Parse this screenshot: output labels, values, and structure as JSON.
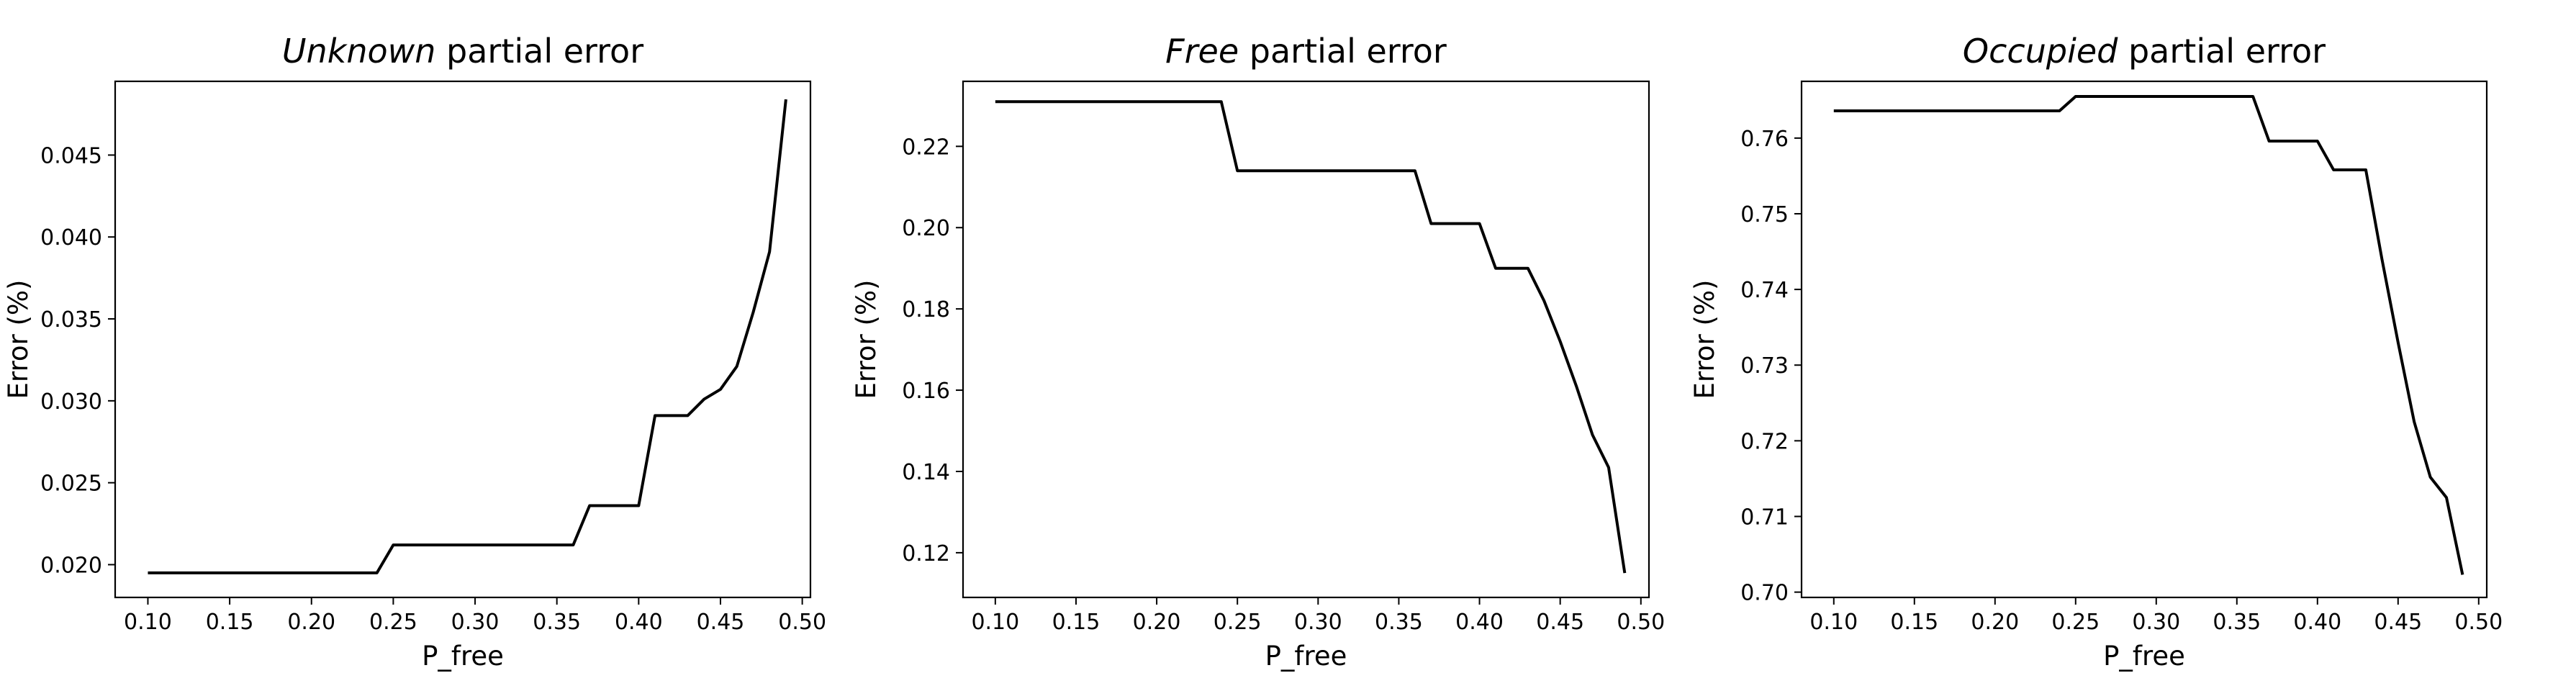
{
  "chart_data": [
    {
      "type": "line",
      "title_em": "Unknown",
      "title_rest": " partial error",
      "xlabel": "P_free",
      "ylabel": "Error (%)",
      "xlim": [
        0.08,
        0.505
      ],
      "ylim": [
        0.018,
        0.0495
      ],
      "xticks": [
        0.1,
        0.15,
        0.2,
        0.25,
        0.3,
        0.35,
        0.4,
        0.45,
        0.5
      ],
      "xtick_labels": [
        "0.10",
        "0.15",
        "0.20",
        "0.25",
        "0.30",
        "0.35",
        "0.40",
        "0.45",
        "0.50"
      ],
      "yticks": [
        0.02,
        0.025,
        0.03,
        0.035,
        0.04,
        0.045
      ],
      "ytick_labels": [
        "0.020",
        "0.025",
        "0.030",
        "0.035",
        "0.040",
        "0.045"
      ],
      "grid": false,
      "series": [
        {
          "color": "#000000",
          "x": [
            0.1,
            0.11,
            0.12,
            0.13,
            0.14,
            0.15,
            0.16,
            0.17,
            0.18,
            0.19,
            0.2,
            0.21,
            0.22,
            0.23,
            0.24,
            0.25,
            0.26,
            0.27,
            0.28,
            0.29,
            0.3,
            0.31,
            0.32,
            0.33,
            0.34,
            0.35,
            0.36,
            0.37,
            0.38,
            0.39,
            0.4,
            0.41,
            0.42,
            0.43,
            0.44,
            0.45,
            0.46,
            0.47,
            0.48,
            0.49
          ],
          "y": [
            0.0195,
            0.0195,
            0.0195,
            0.0195,
            0.0195,
            0.0195,
            0.0195,
            0.0195,
            0.0195,
            0.0195,
            0.0195,
            0.0195,
            0.0195,
            0.0195,
            0.0195,
            0.0212,
            0.0212,
            0.0212,
            0.0212,
            0.0212,
            0.0212,
            0.0212,
            0.0212,
            0.0212,
            0.0212,
            0.0212,
            0.0212,
            0.0236,
            0.0236,
            0.0236,
            0.0236,
            0.0291,
            0.0291,
            0.0291,
            0.0301,
            0.0307,
            0.0321,
            0.0354,
            0.0391,
            0.0484
          ]
        }
      ]
    },
    {
      "type": "line",
      "title_em": "Free",
      "title_rest": " partial error",
      "xlabel": "P_free",
      "ylabel": "Error (%)",
      "xlim": [
        0.08,
        0.505
      ],
      "ylim": [
        0.109,
        0.236
      ],
      "xticks": [
        0.1,
        0.15,
        0.2,
        0.25,
        0.3,
        0.35,
        0.4,
        0.45,
        0.5
      ],
      "xtick_labels": [
        "0.10",
        "0.15",
        "0.20",
        "0.25",
        "0.30",
        "0.35",
        "0.40",
        "0.45",
        "0.50"
      ],
      "yticks": [
        0.12,
        0.14,
        0.16,
        0.18,
        0.2,
        0.22
      ],
      "ytick_labels": [
        "0.12",
        "0.14",
        "0.16",
        "0.18",
        "0.20",
        "0.22"
      ],
      "grid": false,
      "series": [
        {
          "color": "#000000",
          "x": [
            0.1,
            0.11,
            0.12,
            0.13,
            0.14,
            0.15,
            0.16,
            0.17,
            0.18,
            0.19,
            0.2,
            0.21,
            0.22,
            0.23,
            0.24,
            0.25,
            0.26,
            0.27,
            0.28,
            0.29,
            0.3,
            0.31,
            0.32,
            0.33,
            0.34,
            0.35,
            0.36,
            0.37,
            0.38,
            0.39,
            0.4,
            0.41,
            0.42,
            0.43,
            0.44,
            0.45,
            0.46,
            0.47,
            0.48,
            0.49
          ],
          "y": [
            0.231,
            0.231,
            0.231,
            0.231,
            0.231,
            0.231,
            0.231,
            0.231,
            0.231,
            0.231,
            0.231,
            0.231,
            0.231,
            0.231,
            0.231,
            0.214,
            0.214,
            0.214,
            0.214,
            0.214,
            0.214,
            0.214,
            0.214,
            0.214,
            0.214,
            0.214,
            0.214,
            0.201,
            0.201,
            0.201,
            0.201,
            0.19,
            0.19,
            0.19,
            0.182,
            0.172,
            0.161,
            0.149,
            0.141,
            0.115
          ]
        }
      ]
    },
    {
      "type": "line",
      "title_em": "Occupied",
      "title_rest": " partial error",
      "xlabel": "P_free",
      "ylabel": "Error (%)",
      "xlim": [
        0.08,
        0.505
      ],
      "ylim": [
        0.6993,
        0.7675
      ],
      "xticks": [
        0.1,
        0.15,
        0.2,
        0.25,
        0.3,
        0.35,
        0.4,
        0.45,
        0.5
      ],
      "xtick_labels": [
        "0.10",
        "0.15",
        "0.20",
        "0.25",
        "0.30",
        "0.35",
        "0.40",
        "0.45",
        "0.50"
      ],
      "yticks": [
        0.7,
        0.71,
        0.72,
        0.73,
        0.74,
        0.75,
        0.76
      ],
      "ytick_labels": [
        "0.70",
        "0.71",
        "0.72",
        "0.73",
        "0.74",
        "0.75",
        "0.76"
      ],
      "grid": false,
      "series": [
        {
          "color": "#000000",
          "x": [
            0.1,
            0.11,
            0.12,
            0.13,
            0.14,
            0.15,
            0.16,
            0.17,
            0.18,
            0.19,
            0.2,
            0.21,
            0.22,
            0.23,
            0.24,
            0.25,
            0.26,
            0.27,
            0.28,
            0.29,
            0.3,
            0.31,
            0.32,
            0.33,
            0.34,
            0.35,
            0.36,
            0.37,
            0.38,
            0.39,
            0.4,
            0.41,
            0.42,
            0.43,
            0.44,
            0.45,
            0.46,
            0.47,
            0.48,
            0.49
          ],
          "y": [
            0.7636,
            0.7636,
            0.7636,
            0.7636,
            0.7636,
            0.7636,
            0.7636,
            0.7636,
            0.7636,
            0.7636,
            0.7636,
            0.7636,
            0.7636,
            0.7636,
            0.7636,
            0.7655,
            0.7655,
            0.7655,
            0.7655,
            0.7655,
            0.7655,
            0.7655,
            0.7655,
            0.7655,
            0.7655,
            0.7655,
            0.7655,
            0.7596,
            0.7596,
            0.7596,
            0.7596,
            0.7558,
            0.7558,
            0.7558,
            0.744,
            0.733,
            0.7225,
            0.7152,
            0.7125,
            0.7023
          ]
        }
      ]
    }
  ]
}
